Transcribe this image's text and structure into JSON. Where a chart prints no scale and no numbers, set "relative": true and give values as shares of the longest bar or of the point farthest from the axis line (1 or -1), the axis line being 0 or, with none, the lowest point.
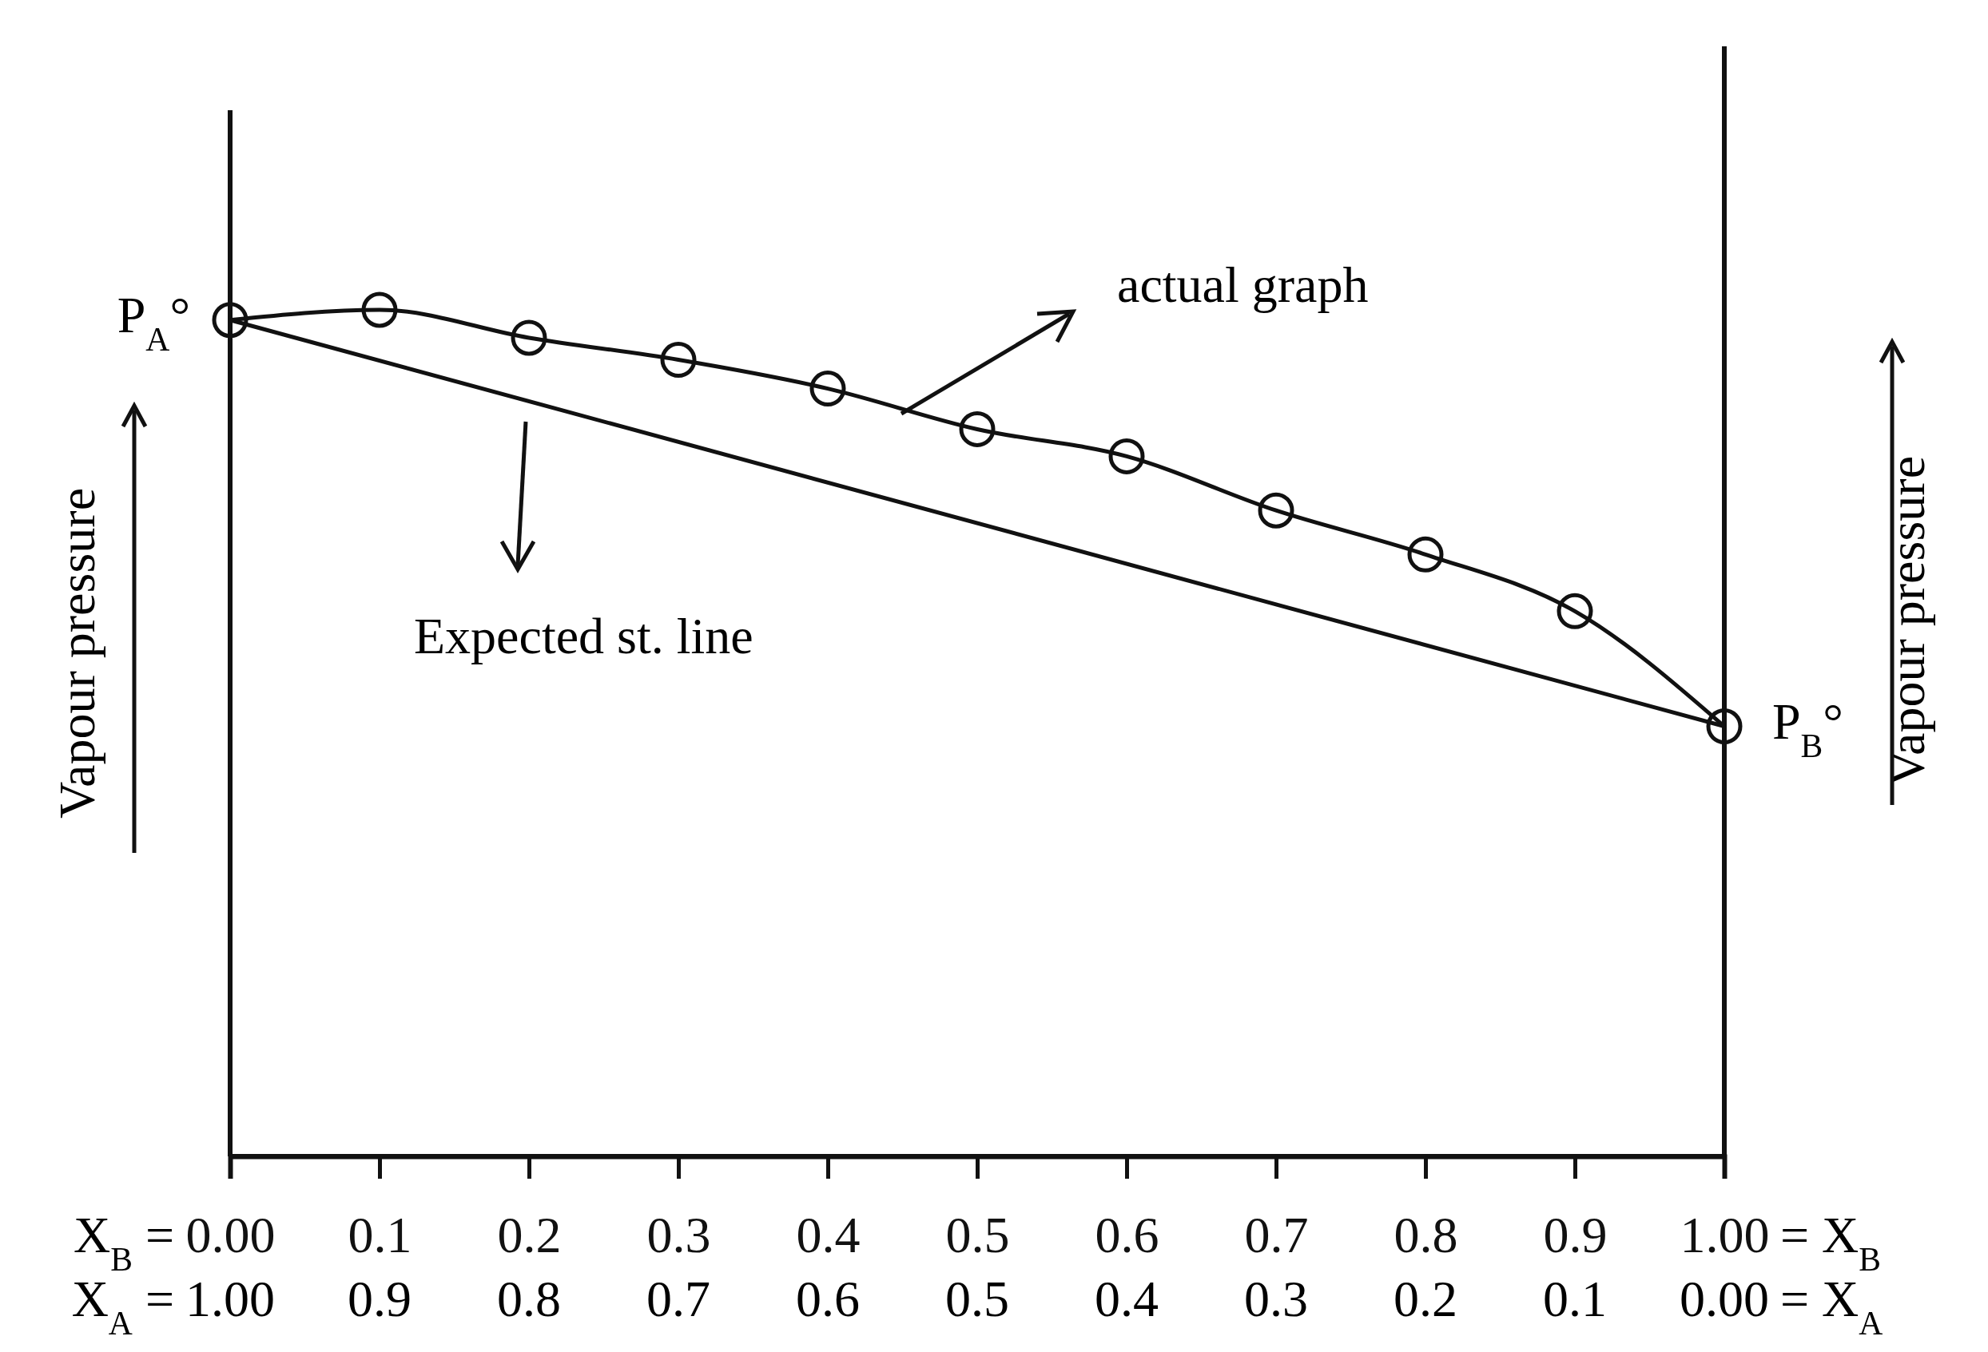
{
  "chart_data": {
    "type": "line",
    "relative": true,
    "xlabel": "X$_{B}$ =",
    "x2label": "X$_{A}$ =",
    "ylabel": "Vapour pressure",
    "y2label": "Vapour pressure",
    "xlim": [
      0,
      1
    ],
    "xticks": [
      {
        "value": 0,
        "label": "0.00"
      },
      0.1,
      0.2,
      0.3,
      0.4,
      0.5,
      0.6,
      0.7,
      0.8,
      0.9,
      {
        "value": 1,
        "label": "1.00"
      }
    ],
    "x2lim": [
      1,
      0
    ],
    "x2ticks": [
      {
        "value": 1,
        "label": "1.00"
      },
      0.9,
      0.8,
      0.7,
      0.6,
      0.5,
      0.4,
      0.3,
      0.2,
      0.1,
      {
        "value": 0,
        "label": "0.00"
      }
    ],
    "x": [
      0,
      0.1,
      0.2,
      0.3,
      0.4,
      0.5,
      0.6,
      0.7,
      0.8,
      0.9,
      1
    ],
    "series": [
      {
        "color": "#111111",
        "marker": "circle",
        "values": [
          0.988,
          1.0,
          0.967,
          0.941,
          0.907,
          0.859,
          0.827,
          0.763,
          0.711,
          0.644,
          0.508
        ]
      },
      {
        "color": "#111111",
        "marker": "none",
        "x": [
          0,
          1
        ],
        "values": [
          0.988,
          0.508
        ]
      }
    ],
    "annotations": [
      "P$_{A}$°",
      "P$_{B}$°",
      "actual graph",
      "Expected st. line",
      "= X$_{B}$",
      "= X$_{A}$"
    ],
    "grid": false
  }
}
